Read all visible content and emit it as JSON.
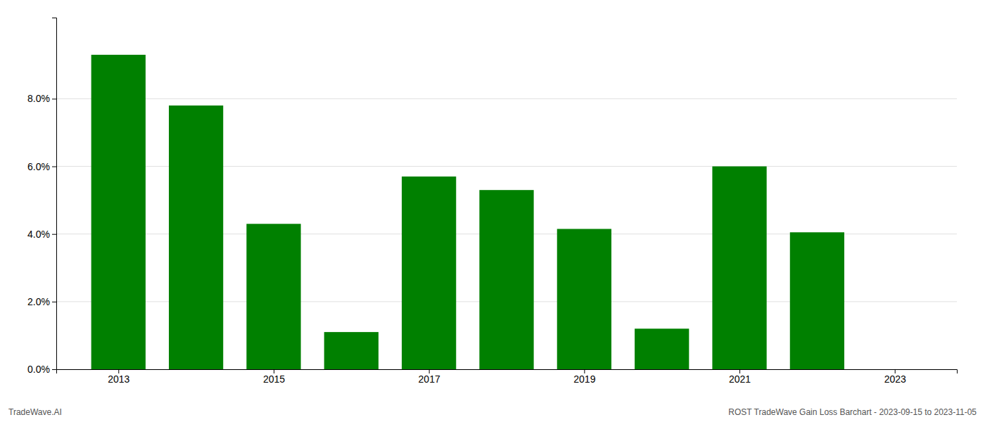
{
  "chart_data": {
    "type": "bar",
    "x": [
      2013,
      2014,
      2015,
      2016,
      2017,
      2018,
      2019,
      2020,
      2021,
      2022,
      2023
    ],
    "values": [
      0.093,
      0.078,
      0.043,
      0.011,
      0.057,
      0.053,
      0.0415,
      0.012,
      0.06,
      0.0405,
      0.0
    ],
    "color": "#008000",
    "xlim": [
      2012.2,
      2023.8
    ],
    "xticks": [
      2013,
      2015,
      2017,
      2019,
      2021,
      2023
    ],
    "ylim": [
      0,
      0.104
    ],
    "yticks": [
      {
        "value": 0.0,
        "label": "0.0%"
      },
      {
        "value": 0.02,
        "label": "2.0%"
      },
      {
        "value": 0.04,
        "label": "4.0%"
      },
      {
        "value": 0.06,
        "label": "6.0%"
      },
      {
        "value": 0.08,
        "label": "8.0%"
      }
    ],
    "grid": true,
    "annotations": [
      "TradeWave.AI",
      "ROST TradeWave Gain Loss Barchart - 2023-09-15 to 2023-11-05"
    ]
  }
}
